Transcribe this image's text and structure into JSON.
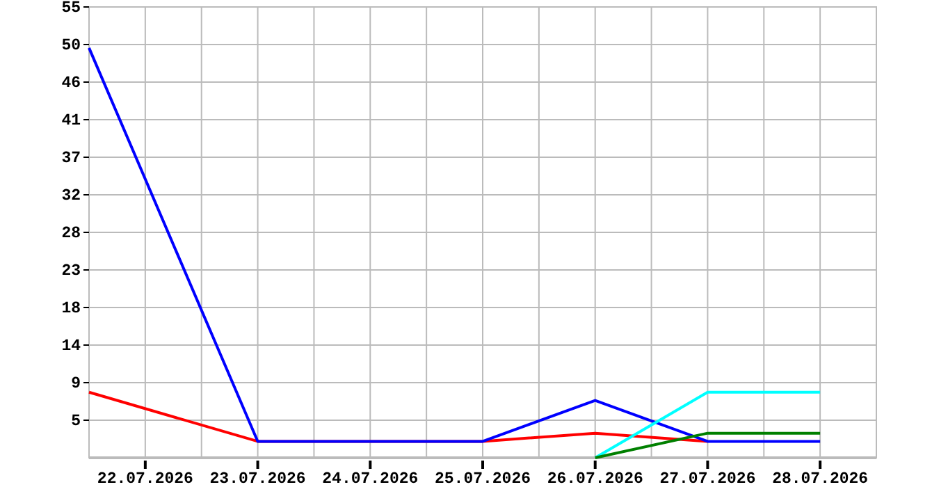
{
  "chart_data": {
    "type": "line",
    "xlim": [
      "2026-07-21T12:00",
      "2026-07-28T12:00"
    ],
    "xticks": [
      {
        "value": "2026-07-22",
        "label": "22.07.2026"
      },
      {
        "value": "2026-07-22T12:00",
        "label": null
      },
      {
        "value": "2026-07-23",
        "label": "23.07.2026"
      },
      {
        "value": "2026-07-23T12:00",
        "label": null
      },
      {
        "value": "2026-07-24",
        "label": "24.07.2026"
      },
      {
        "value": "2026-07-24T12:00",
        "label": null
      },
      {
        "value": "2026-07-25",
        "label": "25.07.2026"
      },
      {
        "value": "2026-07-25T12:00",
        "label": null
      },
      {
        "value": "2026-07-26",
        "label": "26.07.2026"
      },
      {
        "value": "2026-07-26T12:00",
        "label": null
      },
      {
        "value": "2026-07-27",
        "label": "27.07.2026"
      },
      {
        "value": "2026-07-27T12:00",
        "label": null
      },
      {
        "value": "2026-07-28",
        "label": "28.07.2026"
      }
    ],
    "ylim": [
      0,
      55
    ],
    "yticks": [
      {
        "value": 4.583,
        "label": "5"
      },
      {
        "value": 9.167,
        "label": "9"
      },
      {
        "value": 13.75,
        "label": "14"
      },
      {
        "value": 18.333,
        "label": "18"
      },
      {
        "value": 22.917,
        "label": "23"
      },
      {
        "value": 27.5,
        "label": "28"
      },
      {
        "value": 32.083,
        "label": "32"
      },
      {
        "value": 36.667,
        "label": "37"
      },
      {
        "value": 41.25,
        "label": "41"
      },
      {
        "value": 45.833,
        "label": "46"
      },
      {
        "value": 50.417,
        "label": "50"
      },
      55
    ],
    "grid": true,
    "line_style": "solid",
    "series": [
      {
        "color": "#ff0000",
        "x": [
          "2026-07-21T12:00",
          "2026-07-23",
          "2026-07-25",
          "2026-07-26",
          "2026-07-27"
        ],
        "values": [
          8,
          2,
          2,
          3,
          2
        ]
      },
      {
        "color": "#0000ff",
        "x": [
          "2026-07-21T12:00",
          "2026-07-23",
          "2026-07-25",
          "2026-07-26",
          "2026-07-27",
          "2026-07-28"
        ],
        "values": [
          50,
          2,
          2,
          7,
          2,
          2
        ]
      },
      {
        "color": "#00ffff",
        "x": [
          "2026-07-26",
          "2026-07-27",
          "2026-07-28"
        ],
        "values": [
          0,
          8,
          8
        ]
      },
      {
        "color": "#008000",
        "x": [
          "2026-07-26",
          "2026-07-27",
          "2026-07-28"
        ],
        "values": [
          0,
          3,
          3
        ]
      }
    ]
  }
}
